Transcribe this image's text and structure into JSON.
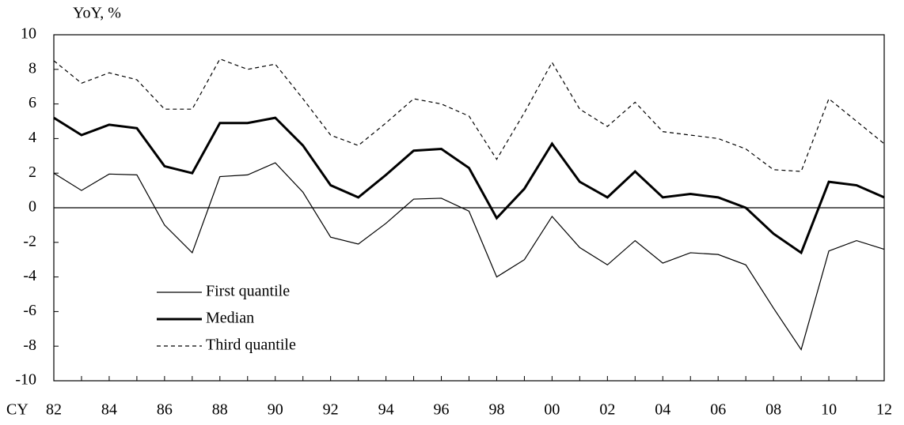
{
  "chart_data": {
    "type": "line",
    "y_label": "YoY, %",
    "x_label": "CY",
    "categories": [
      "82",
      null,
      "84",
      null,
      "86",
      null,
      "88",
      null,
      "90",
      null,
      "92",
      null,
      "94",
      null,
      "96",
      null,
      "98",
      null,
      "00",
      null,
      "02",
      null,
      "04",
      null,
      "06",
      null,
      "08",
      null,
      "10",
      null,
      "12"
    ],
    "series": [
      {
        "name": "First quantile",
        "color": "#000000",
        "width": 1.2,
        "dash": "none",
        "values": [
          2.0,
          1.0,
          1.95,
          1.9,
          -1.0,
          -2.6,
          1.8,
          1.9,
          2.6,
          0.9,
          -1.7,
          -2.1,
          -0.9,
          0.5,
          0.55,
          -0.2,
          -4.0,
          -3.0,
          -0.5,
          -2.3,
          -3.3,
          -1.9,
          -3.2,
          -2.6,
          -2.7,
          -3.3,
          -5.8,
          -8.2,
          -2.5,
          -1.9,
          -2.4
        ]
      },
      {
        "name": "Median",
        "color": "#000000",
        "width": 3,
        "dash": "none",
        "values": [
          5.2,
          4.2,
          4.8,
          4.6,
          2.4,
          2.0,
          4.9,
          4.9,
          5.2,
          3.6,
          1.3,
          0.6,
          1.9,
          3.3,
          3.4,
          2.3,
          -0.6,
          1.1,
          3.7,
          1.5,
          0.6,
          2.1,
          0.6,
          0.8,
          0.6,
          0.0,
          -1.5,
          -2.6,
          1.5,
          1.3,
          0.6
        ]
      },
      {
        "name": "Third quantile",
        "color": "#000000",
        "width": 1.2,
        "dash": "5 4",
        "values": [
          8.5,
          7.2,
          7.8,
          7.4,
          5.7,
          5.7,
          8.6,
          8.0,
          8.3,
          6.3,
          4.2,
          3.6,
          4.9,
          6.3,
          6.0,
          5.3,
          2.8,
          5.5,
          8.4,
          5.7,
          4.7,
          6.1,
          4.4,
          4.2,
          4.0,
          3.4,
          2.2,
          2.1,
          6.3,
          5.0,
          3.7
        ]
      }
    ],
    "ylim": [
      -10,
      10
    ],
    "yticks": [
      -10,
      -8,
      -6,
      -4,
      -2,
      0,
      2,
      4,
      6,
      8,
      10
    ],
    "hlines": [
      0
    ],
    "grid": false,
    "legend": "lower left"
  }
}
